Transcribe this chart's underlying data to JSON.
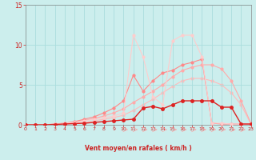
{
  "xlabel": "Vent moyen/en rafales ( km/h )",
  "xlim": [
    0,
    23
  ],
  "ylim": [
    0,
    15
  ],
  "yticks": [
    0,
    5,
    10,
    15
  ],
  "xticks": [
    0,
    1,
    2,
    3,
    4,
    5,
    6,
    7,
    8,
    9,
    10,
    11,
    12,
    13,
    14,
    15,
    16,
    17,
    18,
    19,
    20,
    21,
    22,
    23
  ],
  "bg": "#cceeed",
  "grid_color": "#aadddd",
  "lines": [
    {
      "x": [
        0,
        1,
        2,
        3,
        4,
        5,
        6,
        7,
        8,
        9,
        10,
        11,
        12,
        13,
        14,
        15,
        16,
        17,
        18,
        19,
        20,
        21,
        22,
        23
      ],
      "y": [
        0,
        0,
        0,
        0.05,
        0.1,
        0.2,
        0.3,
        0.5,
        0.7,
        0.9,
        1.2,
        1.8,
        2.5,
        3.2,
        4.0,
        4.8,
        5.5,
        5.8,
        5.8,
        5.5,
        5.0,
        4.0,
        2.5,
        0.1
      ],
      "color": "#ffbbbb",
      "lw": 0.8,
      "ms": 2.0,
      "zorder": 1
    },
    {
      "x": [
        0,
        1,
        2,
        3,
        4,
        5,
        6,
        7,
        8,
        9,
        10,
        11,
        12,
        13,
        14,
        15,
        16,
        17,
        18,
        19,
        20,
        21,
        22,
        23
      ],
      "y": [
        0,
        0,
        0,
        0.1,
        0.2,
        0.35,
        0.55,
        0.8,
        1.1,
        1.5,
        2.0,
        2.8,
        3.5,
        4.2,
        5.0,
        6.0,
        6.8,
        7.2,
        7.5,
        7.5,
        7.0,
        5.5,
        3.0,
        0.2
      ],
      "color": "#ffaaaa",
      "lw": 0.8,
      "ms": 2.0,
      "zorder": 2
    },
    {
      "x": [
        0,
        1,
        2,
        3,
        4,
        5,
        6,
        7,
        8,
        9,
        10,
        11,
        12,
        13,
        14,
        15,
        16,
        17,
        18,
        19,
        20,
        21,
        22,
        23
      ],
      "y": [
        0,
        0,
        0,
        0.1,
        0.2,
        0.4,
        0.7,
        1.0,
        1.5,
        2.1,
        3.0,
        6.2,
        4.2,
        5.5,
        6.5,
        6.8,
        7.5,
        7.8,
        8.2,
        0.2,
        0.1,
        0.1,
        0.1,
        0.1
      ],
      "color": "#ff8888",
      "lw": 0.8,
      "ms": 2.0,
      "zorder": 3
    },
    {
      "comment": "light salmon - big spike at 11~11.2, valley at 12~8.5, spike at 15~10.5, 16-17~11.2, drop 18~8.5",
      "x": [
        0,
        1,
        2,
        3,
        4,
        5,
        6,
        7,
        8,
        9,
        10,
        11,
        12,
        13,
        14,
        15,
        16,
        17,
        18,
        19,
        20,
        21,
        22,
        23
      ],
      "y": [
        0,
        0,
        0,
        0.1,
        0.2,
        0.3,
        0.5,
        0.7,
        0.9,
        1.1,
        1.5,
        11.2,
        8.5,
        3.5,
        2.5,
        10.5,
        11.2,
        11.2,
        8.5,
        0.2,
        0.2,
        0.1,
        0.1,
        0.1
      ],
      "color": "#ffcccc",
      "lw": 0.8,
      "ms": 2.0,
      "zorder": 4
    },
    {
      "x": [
        0,
        1,
        2,
        3,
        4,
        5,
        6,
        7,
        8,
        9,
        10,
        11,
        12,
        13,
        14,
        15,
        16,
        17,
        18,
        19,
        20,
        21,
        22,
        23
      ],
      "y": [
        0,
        0,
        0,
        0.05,
        0.1,
        0.15,
        0.2,
        0.3,
        0.4,
        0.5,
        0.6,
        0.7,
        2.1,
        2.3,
        2.0,
        2.5,
        3.0,
        3.0,
        3.0,
        3.0,
        2.2,
        2.2,
        0.1,
        0.1
      ],
      "color": "#dd2222",
      "lw": 1.0,
      "ms": 2.5,
      "zorder": 5
    }
  ],
  "arrows_x": [
    10,
    11,
    12,
    13,
    14,
    15,
    16,
    17,
    18,
    19,
    20,
    21,
    22
  ]
}
